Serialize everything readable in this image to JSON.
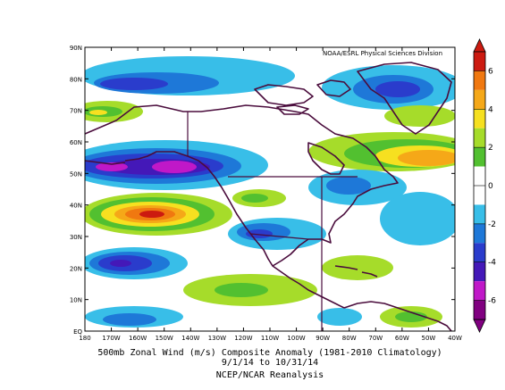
{
  "credit": "NOAA/ESRL Physical Sciences Division",
  "caption": {
    "line1": "500mb Zonal Wind (m/s) Composite Anomaly (1981-2010 Climatology)",
    "line2": "9/1/14 to 10/31/14",
    "line3": "NCEP/NCAR Reanalysis"
  },
  "lon_ticks": [
    "180",
    "170W",
    "160W",
    "150W",
    "140W",
    "130W",
    "120W",
    "110W",
    "100W",
    "90W",
    "80W",
    "70W",
    "60W",
    "50W",
    "40W"
  ],
  "lat_ticks": [
    "EQ",
    "10N",
    "20N",
    "30N",
    "40N",
    "50N",
    "60N",
    "70N",
    "80N",
    "90N"
  ],
  "colorbar": {
    "labels": [
      "6",
      "4",
      "2",
      "0",
      "-2",
      "-4",
      "-6"
    ],
    "colors": [
      "#cc1a10",
      "#f07810",
      "#f5a818",
      "#f6e020",
      "#a6dc2a",
      "#52c030",
      "#ffffff",
      "#ffffff",
      "#38bee8",
      "#1e78d8",
      "#2a3ccc",
      "#4418b8",
      "#c018c8",
      "#800080"
    ]
  },
  "map": {
    "lon_range": [
      -180,
      -40
    ],
    "lat_range": [
      0,
      90
    ],
    "land_color": "#4a0c3c"
  }
}
